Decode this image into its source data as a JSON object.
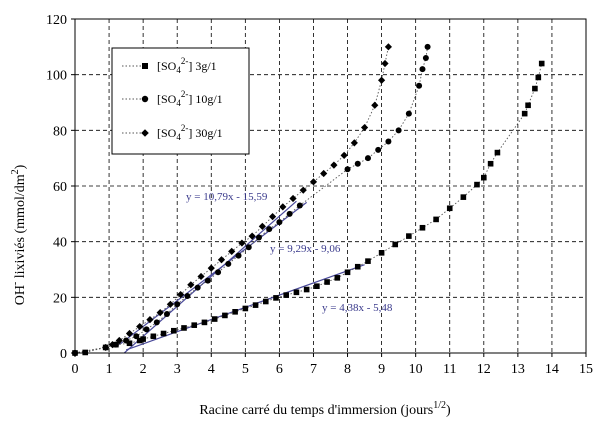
{
  "chart_data": {
    "type": "scatter",
    "xlabel": "Racine carré du temps d'immersion (jours",
    "xlabel_sup": "1/2",
    "xlabel_end": ")",
    "ylabel": "OH",
    "ylabel_sup": "-",
    "ylabel_rest": " lixiviés (mmol/dm",
    "ylabel_sup2": "2",
    "ylabel_end": ")",
    "xlim": [
      0,
      15
    ],
    "ylim": [
      0,
      120
    ],
    "xticks": [
      "0",
      "1",
      "2",
      "3",
      "4",
      "5",
      "6",
      "7",
      "8",
      "9",
      "10",
      "11",
      "12",
      "13",
      "14",
      "15"
    ],
    "yticks": [
      "0",
      "20",
      "40",
      "60",
      "80",
      "100",
      "120"
    ],
    "grid": "dashed",
    "legend": {
      "placement": "top-left",
      "prefix": "[SO",
      "sub": "4",
      "sup": "2-",
      "close": "]"
    },
    "series": [
      {
        "name_value": "3g/1",
        "marker": "square",
        "points": [
          [
            0,
            0
          ],
          [
            0.3,
            0.2
          ],
          [
            0.9,
            2
          ],
          [
            1.2,
            3
          ],
          [
            1.6,
            3.5
          ],
          [
            1.9,
            4.5
          ],
          [
            2.0,
            5
          ],
          [
            2.3,
            6
          ],
          [
            2.6,
            7
          ],
          [
            2.9,
            8
          ],
          [
            3.2,
            9
          ],
          [
            3.5,
            10
          ],
          [
            3.8,
            11
          ],
          [
            4.1,
            12.2
          ],
          [
            4.4,
            13.5
          ],
          [
            4.7,
            14.8
          ],
          [
            5.0,
            16
          ],
          [
            5.3,
            17.2
          ],
          [
            5.6,
            18.5
          ],
          [
            5.9,
            19.8
          ],
          [
            6.2,
            20.8
          ],
          [
            6.5,
            21.8
          ],
          [
            6.8,
            22.8
          ],
          [
            7.1,
            24
          ],
          [
            7.4,
            25.5
          ],
          [
            7.7,
            27
          ],
          [
            8.0,
            29
          ],
          [
            8.3,
            31
          ],
          [
            8.6,
            33
          ],
          [
            9.0,
            36
          ],
          [
            9.4,
            39
          ],
          [
            9.8,
            42
          ],
          [
            10.2,
            45
          ],
          [
            10.6,
            48
          ],
          [
            11.0,
            52
          ],
          [
            11.4,
            56
          ],
          [
            11.8,
            60.5
          ],
          [
            12.0,
            63
          ],
          [
            12.2,
            68
          ],
          [
            12.4,
            72
          ],
          [
            13.2,
            86
          ],
          [
            13.3,
            89
          ],
          [
            13.5,
            95
          ],
          [
            13.6,
            99
          ],
          [
            13.7,
            104
          ]
        ]
      },
      {
        "name_value": "10g/1",
        "marker": "circle",
        "points": [
          [
            0,
            0
          ],
          [
            0.9,
            2
          ],
          [
            1.2,
            3
          ],
          [
            1.5,
            4.5
          ],
          [
            1.8,
            6
          ],
          [
            2.1,
            8.5
          ],
          [
            2.4,
            11
          ],
          [
            2.7,
            14
          ],
          [
            3.0,
            17.5
          ],
          [
            3.3,
            20.5
          ],
          [
            3.6,
            23.5
          ],
          [
            3.9,
            26
          ],
          [
            4.2,
            29
          ],
          [
            4.5,
            32
          ],
          [
            4.8,
            35
          ],
          [
            5.1,
            38
          ],
          [
            5.4,
            41.5
          ],
          [
            5.7,
            44.5
          ],
          [
            6.0,
            47
          ],
          [
            6.3,
            50
          ],
          [
            6.6,
            53
          ],
          [
            8.0,
            66
          ],
          [
            8.3,
            68
          ],
          [
            8.6,
            70
          ],
          [
            8.9,
            73
          ],
          [
            9.2,
            76
          ],
          [
            9.5,
            80
          ],
          [
            9.8,
            86
          ],
          [
            10.1,
            96
          ],
          [
            10.2,
            102
          ],
          [
            10.3,
            106
          ],
          [
            10.35,
            110
          ]
        ]
      },
      {
        "name_value": "30g/1",
        "marker": "diamond",
        "points": [
          [
            0,
            0
          ],
          [
            0.9,
            2
          ],
          [
            1.1,
            3
          ],
          [
            1.3,
            4.5
          ],
          [
            1.6,
            7
          ],
          [
            1.9,
            9.5
          ],
          [
            2.2,
            12
          ],
          [
            2.5,
            14.5
          ],
          [
            2.8,
            17.5
          ],
          [
            3.1,
            21
          ],
          [
            3.4,
            24.5
          ],
          [
            3.7,
            27.5
          ],
          [
            4.0,
            30.5
          ],
          [
            4.3,
            33.5
          ],
          [
            4.6,
            36.5
          ],
          [
            4.9,
            39.5
          ],
          [
            5.2,
            42
          ],
          [
            5.5,
            45.5
          ],
          [
            5.8,
            49
          ],
          [
            6.1,
            52.5
          ],
          [
            6.4,
            55.5
          ],
          [
            6.7,
            58.5
          ],
          [
            7.0,
            61.5
          ],
          [
            7.3,
            64.5
          ],
          [
            7.6,
            67.5
          ],
          [
            7.9,
            71
          ],
          [
            8.2,
            75.5
          ],
          [
            8.5,
            81
          ],
          [
            8.8,
            89
          ],
          [
            9.0,
            98
          ],
          [
            9.1,
            104
          ],
          [
            9.2,
            110
          ]
        ]
      }
    ],
    "fit_lines": [
      {
        "equation": "y = 10,79x - 15,59",
        "x": [
          1.45,
          6.5
        ],
        "slope": 10.79,
        "intercept": -15.59
      },
      {
        "equation": "y = 9,29x - 9,06",
        "x": [
          1.3,
          6.8
        ],
        "slope": 9.29,
        "intercept": -9.06
      },
      {
        "equation": "y = 4,38x - 5,48",
        "x": [
          1.5,
          8.5
        ],
        "slope": 4.38,
        "intercept": -5.48
      }
    ],
    "colors": {
      "markers": "#000000",
      "fit_lines": "#4a4a9a",
      "grid": "#000000"
    }
  }
}
